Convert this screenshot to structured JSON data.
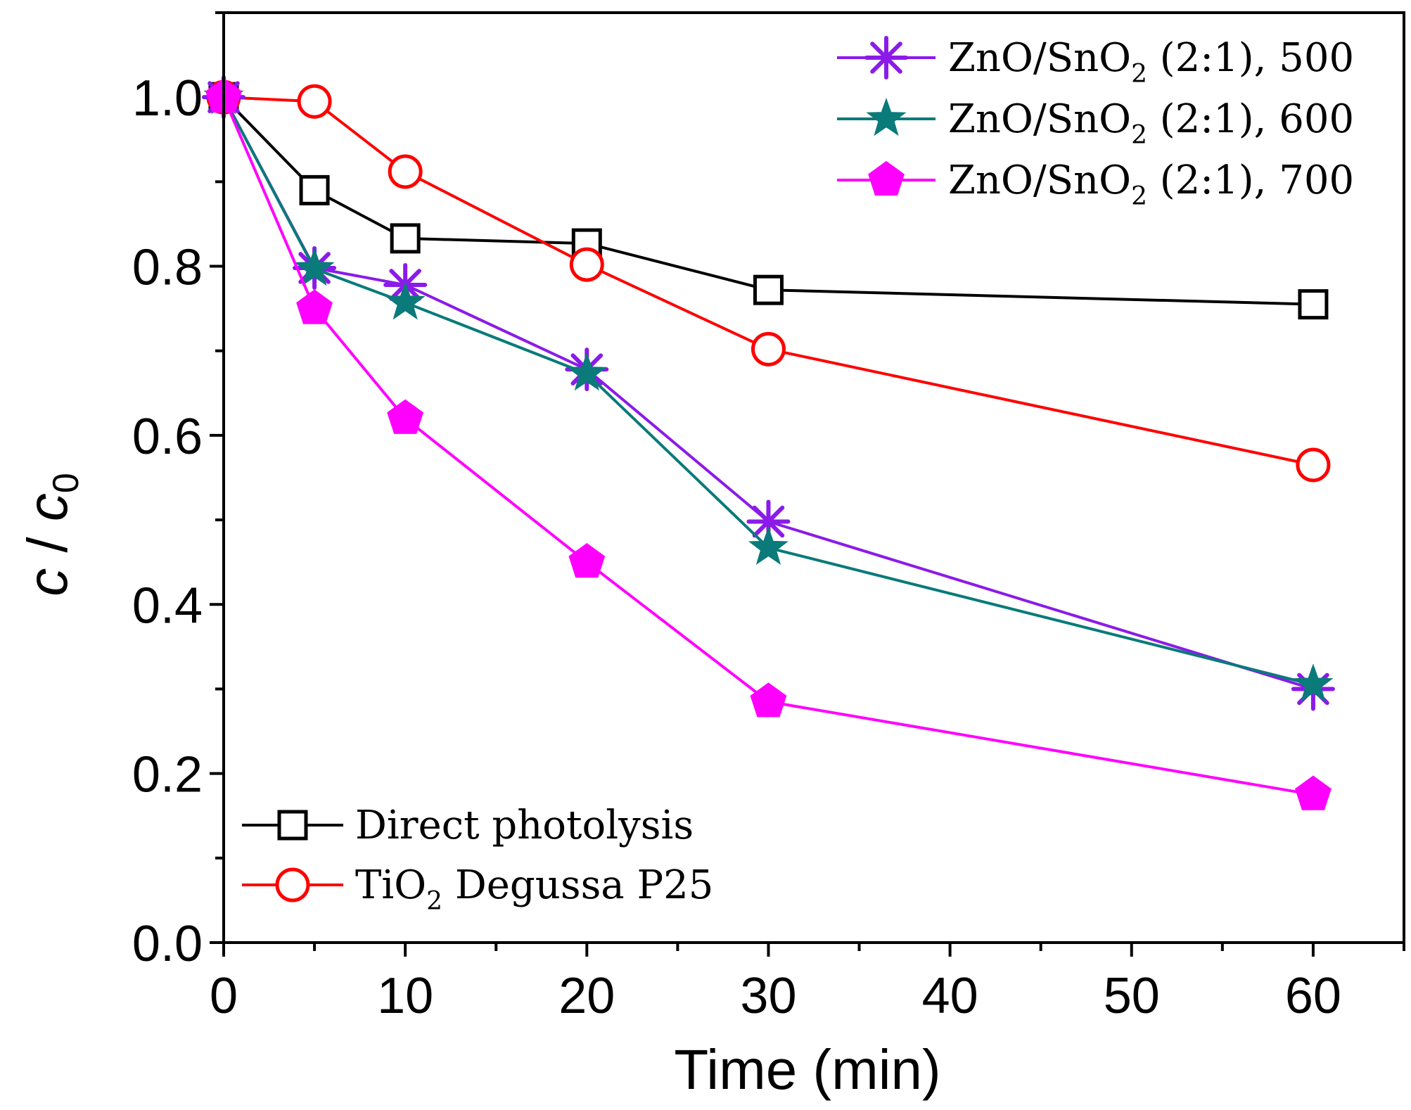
{
  "chart_data": {
    "type": "line",
    "title": "",
    "xlabel": "Time (min)",
    "ylabel_main": "c",
    "ylabel_sep": " / ",
    "ylabel_c": "c",
    "ylabel_sub": "0",
    "xlim": [
      0,
      65
    ],
    "ylim": [
      0,
      1.1
    ],
    "x_ticks": [
      0,
      10,
      20,
      30,
      40,
      50,
      60
    ],
    "x_tick_labels": [
      "0",
      "10",
      "20",
      "30",
      "40",
      "50",
      "60"
    ],
    "y_ticks": [
      0.0,
      0.2,
      0.4,
      0.6,
      0.8,
      1.0
    ],
    "y_tick_labels": [
      "0.0",
      "0.2",
      "0.4",
      "0.6",
      "0.8",
      "1.0"
    ],
    "grid": false,
    "x": [
      0,
      5,
      10,
      20,
      30,
      60
    ],
    "series": [
      {
        "id": "direct",
        "name": "Direct photolysis",
        "name_parts": [
          "Direct photolysis"
        ],
        "color": "#000000",
        "marker": "square-open",
        "legend": "bottom-left",
        "values": [
          1.0,
          0.89,
          0.833,
          0.827,
          0.772,
          0.755
        ]
      },
      {
        "id": "tio2",
        "name": "TiO2 Degussa P25",
        "name_parts": [
          "TiO",
          "2",
          " Degussa P25"
        ],
        "color": "#ff0000",
        "marker": "circle-open",
        "legend": "bottom-left",
        "values": [
          1.0,
          0.995,
          0.912,
          0.802,
          0.702,
          0.565
        ]
      },
      {
        "id": "zno500",
        "name": "ZnO/SnO2 (2:1), 500",
        "name_parts": [
          "ZnO/SnO",
          "2",
          " (2:1), 500"
        ],
        "color": "#8b1be8",
        "marker": "asterisk",
        "legend": "top-right",
        "values": [
          1.0,
          0.798,
          0.778,
          0.678,
          0.498,
          0.3
        ]
      },
      {
        "id": "zno600",
        "name": "ZnO/SnO2 (2:1), 600",
        "name_parts": [
          "ZnO/SnO",
          "2",
          " (2:1), 600"
        ],
        "color": "#0a7a7a",
        "marker": "star",
        "legend": "top-right",
        "values": [
          1.0,
          0.797,
          0.757,
          0.673,
          0.467,
          0.305
        ]
      },
      {
        "id": "zno700",
        "name": "ZnO/SnO2 (2:1), 700",
        "name_parts": [
          "ZnO/SnO",
          "2",
          " (2:1), 700"
        ],
        "color": "#ff00ff",
        "marker": "pentagon",
        "legend": "top-right",
        "values": [
          1.0,
          0.75,
          0.62,
          0.45,
          0.285,
          0.175
        ]
      }
    ]
  }
}
